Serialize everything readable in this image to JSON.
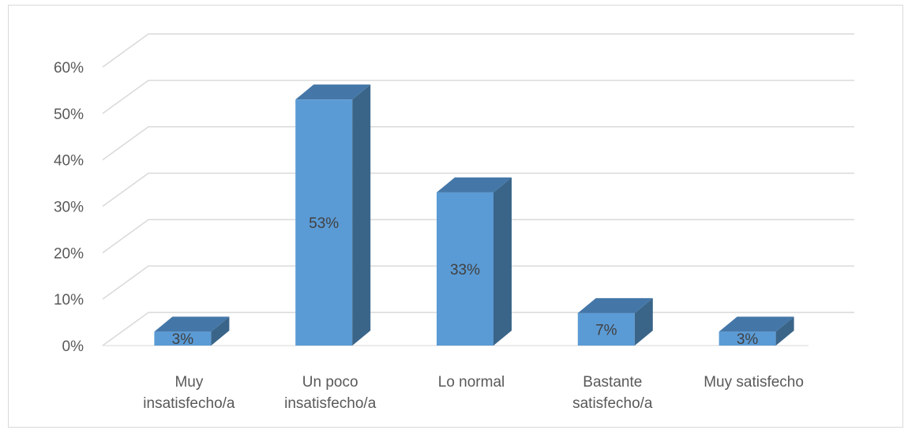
{
  "chart_data": {
    "type": "bar",
    "categories": [
      [
        "Muy",
        "insatisfecho/a"
      ],
      [
        "Un poco",
        "insatisfecho/a"
      ],
      [
        "Lo normal"
      ],
      [
        "Bastante",
        "satisfecho/a"
      ],
      [
        "Muy satisfecho"
      ]
    ],
    "values": [
      3,
      53,
      33,
      7,
      3
    ],
    "data_labels": [
      "3%",
      "53%",
      "33%",
      "7%",
      "3%"
    ],
    "y_ticks": [
      "0%",
      "10%",
      "20%",
      "30%",
      "40%",
      "50%",
      "60%"
    ],
    "ylim": [
      0,
      60
    ],
    "grid": true,
    "bar_style": "3d",
    "colors": {
      "bar_front": "#5b9bd5",
      "bar_side": "#3a6589",
      "bar_top": "#4477a8",
      "grid": "#d9d9d9",
      "text": "#595959"
    }
  }
}
